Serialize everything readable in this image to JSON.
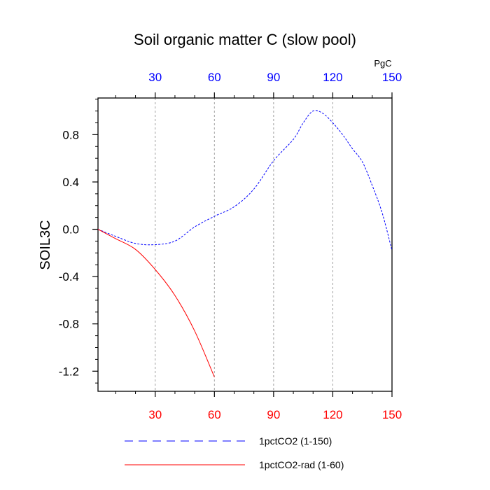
{
  "chart_data": {
    "type": "line",
    "title": "Soil organic matter C (slow pool)",
    "ylabel": "SOIL3C",
    "top_axis_unit": "PgC",
    "xlim": [
      1,
      150
    ],
    "ylim": [
      -1.37,
      1.11
    ],
    "x_ticks": [
      30,
      60,
      90,
      120,
      150
    ],
    "x_tick_labels": [
      "30",
      "60",
      "90",
      "120",
      "150"
    ],
    "top_tick_labels": [
      "30",
      "60",
      "90",
      "120",
      "150"
    ],
    "y_ticks": [
      0.8,
      0.4,
      0.0,
      -0.4,
      -0.8,
      -1.2
    ],
    "y_tick_labels": [
      "0.8",
      "0.4",
      "0.0",
      "-0.4",
      "-0.8",
      "-1.2"
    ],
    "grid": "vertical dashed at x ticks",
    "legend_position": "bottom",
    "colors": {
      "bottom_axis_labels": "#ff0000",
      "top_axis_labels": "#0000ff",
      "grid": "#a0a0a0"
    },
    "series": [
      {
        "name": "1pctCO2 (1-150)",
        "color": "#0000ff",
        "dash": "dashed",
        "x": [
          1,
          10,
          20,
          30,
          40,
          50,
          60,
          70,
          80,
          90,
          100,
          105,
          110,
          115,
          120,
          125,
          130,
          135,
          140,
          145,
          150
        ],
        "y": [
          0.0,
          -0.06,
          -0.12,
          -0.13,
          -0.1,
          0.02,
          0.11,
          0.19,
          0.34,
          0.58,
          0.76,
          0.9,
          1.0,
          0.98,
          0.9,
          0.8,
          0.68,
          0.57,
          0.37,
          0.14,
          -0.18
        ]
      },
      {
        "name": "1pctCO2-rad (1-60)",
        "color": "#ff0000",
        "dash": "solid",
        "x": [
          1,
          10,
          20,
          30,
          40,
          50,
          60
        ],
        "y": [
          0.0,
          -0.08,
          -0.17,
          -0.34,
          -0.56,
          -0.86,
          -1.25
        ]
      }
    ]
  }
}
